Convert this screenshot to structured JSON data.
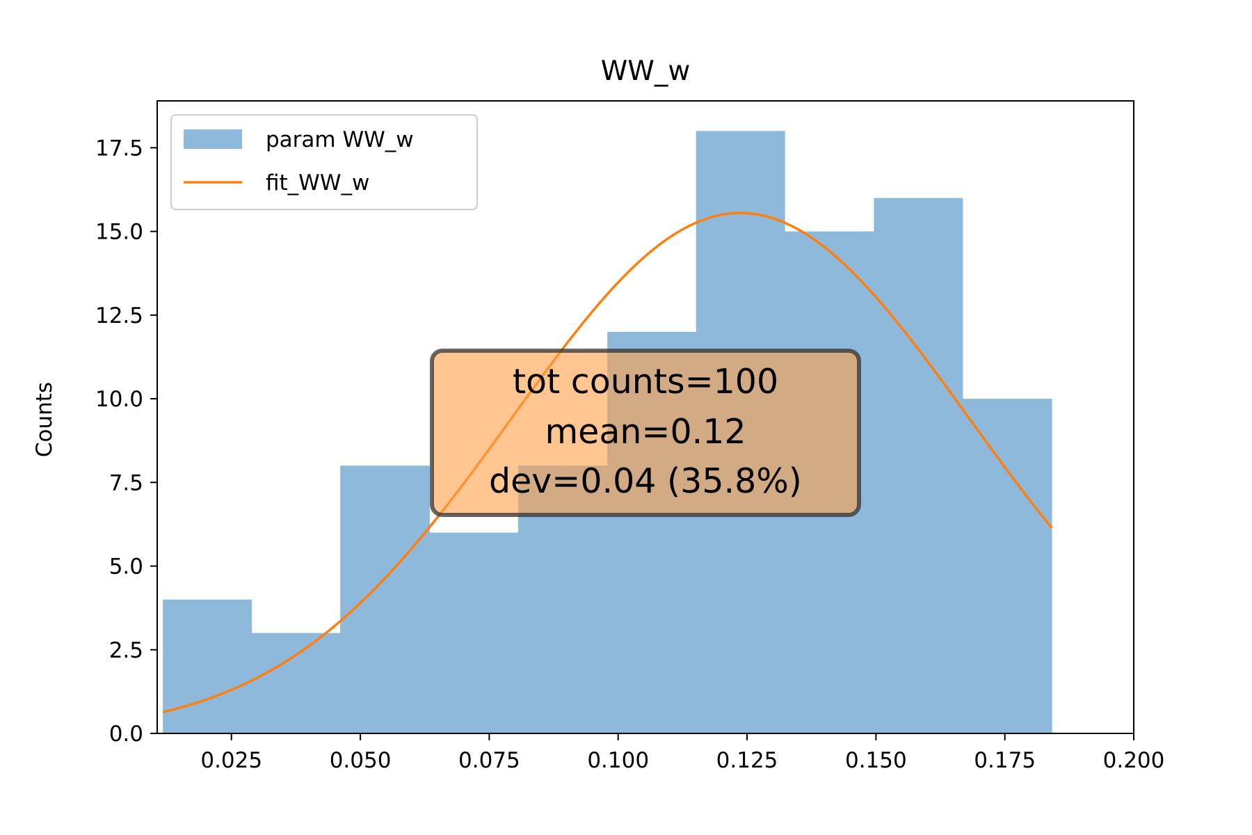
{
  "chart_data": {
    "type": "bar",
    "title": "WW_w",
    "xlabel": "",
    "ylabel": "Counts",
    "xlim": [
      0.0106,
      0.2
    ],
    "ylim": [
      0,
      18.9
    ],
    "xticks": [
      0.025,
      0.05,
      0.075,
      0.1,
      0.125,
      0.15,
      0.175,
      0.2
    ],
    "xtick_labels": [
      "0.025",
      "0.050",
      "0.075",
      "0.100",
      "0.125",
      "0.150",
      "0.175",
      "0.200"
    ],
    "yticks": [
      0,
      2.5,
      5,
      7.5,
      10,
      12.5,
      15,
      17.5
    ],
    "ytick_labels": [
      "0.0",
      "2.5",
      "5.0",
      "7.5",
      "10.0",
      "12.5",
      "15.0",
      "17.5"
    ],
    "grid": false,
    "legend_position": "upper-left",
    "histogram": {
      "name": "param WW_w",
      "color": "#8fb9da",
      "bin_edges": [
        0.0117,
        0.0289,
        0.0461,
        0.0634,
        0.0806,
        0.0979,
        0.1151,
        0.1323,
        0.1496,
        0.1668,
        0.1841
      ],
      "counts": [
        4,
        3,
        8,
        6,
        8,
        12,
        18,
        15,
        16,
        10
      ]
    },
    "fit": {
      "name": "fit_WW_w",
      "color": "#ff7f0e",
      "x_start": 0.0117,
      "x_end": 0.1841,
      "amplitude": 15.55,
      "mean": 0.1237,
      "sigma": 0.0443
    },
    "annotation": {
      "lines": [
        "tot counts=100",
        "mean=0.12",
        "dev=0.04 (35.8%)"
      ],
      "box_color": "#ffa04a",
      "border_color": "#333333",
      "position": "center"
    }
  }
}
